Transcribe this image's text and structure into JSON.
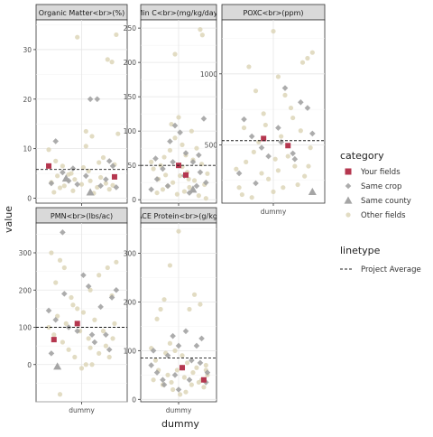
{
  "axes": {
    "xlabel": "dummy",
    "ylabel": "value"
  },
  "legend": {
    "category_title": "category",
    "categories": [
      {
        "label": "Your fields",
        "color": "#b5374f",
        "shape": "square"
      },
      {
        "label": "Same crop",
        "color": "#9e9e9e",
        "shape": "diamond"
      },
      {
        "label": "Same county",
        "color": "#a5a5a5",
        "shape": "triangle"
      },
      {
        "label": "Other fields",
        "color": "#ddd6b8",
        "shape": "circle"
      }
    ],
    "linetype_title": "linetype",
    "linetypes": [
      {
        "label": "Project Average",
        "style": "dashed"
      }
    ]
  },
  "chart_data": [
    {
      "type": "scatter",
      "title": "Organic Matter<br>(%)",
      "xlabel": "dummy",
      "ylabel": "value",
      "ylim": [
        -1,
        36
      ],
      "yticks": [
        0,
        10,
        20,
        30
      ],
      "x_tick": "dummy",
      "project_average": 5.8,
      "points": {
        "Other fields": [
          [
            -0.38,
            9.8
          ],
          [
            -0.3,
            7.5
          ],
          [
            -0.22,
            6.5
          ],
          [
            -0.15,
            4.8
          ],
          [
            -0.05,
            32.5
          ],
          [
            0.05,
            13.5
          ],
          [
            0.12,
            12.5
          ],
          [
            0.2,
            7.2
          ],
          [
            0.3,
            28
          ],
          [
            0.35,
            27.5
          ],
          [
            0.4,
            33
          ],
          [
            0.42,
            13
          ],
          [
            -0.35,
            3.2
          ],
          [
            -0.25,
            2.1
          ],
          [
            -0.1,
            1.5
          ],
          [
            0.0,
            2.8
          ],
          [
            0.1,
            3.5
          ],
          [
            0.22,
            4.2
          ],
          [
            0.32,
            1.8
          ],
          [
            -0.32,
            1.2
          ],
          [
            -0.2,
            2.5
          ],
          [
            -0.08,
            3.8
          ],
          [
            0.08,
            5.5
          ],
          [
            0.18,
            2.2
          ],
          [
            0.28,
            3.0
          ],
          [
            0.38,
            6.8
          ],
          [
            -0.12,
            5.0
          ],
          [
            0.02,
            6.2
          ],
          [
            0.14,
            1.0
          ],
          [
            0.25,
            8.2
          ],
          [
            0.36,
            2.6
          ],
          [
            -0.28,
            4.5
          ],
          [
            0.05,
            10.5
          ]
        ],
        "Same crop": [
          [
            -0.3,
            11.5
          ],
          [
            -0.22,
            5.2
          ],
          [
            -0.15,
            3.5
          ],
          [
            -0.05,
            2.8
          ],
          [
            0.05,
            4.5
          ],
          [
            0.1,
            20
          ],
          [
            0.18,
            20
          ],
          [
            0.28,
            3.8
          ],
          [
            0.36,
            6.5
          ],
          [
            0.4,
            2.2
          ],
          [
            -0.35,
            3.0
          ],
          [
            -0.1,
            6.0
          ],
          [
            0.22,
            2.5
          ],
          [
            0.32,
            7.5
          ]
        ],
        "Same county": [
          [
            0.1,
            1.2
          ],
          [
            -0.18,
            4.0
          ]
        ],
        "Your fields": [
          [
            -0.38,
            6.5
          ],
          [
            0.38,
            4.3
          ]
        ]
      }
    },
    {
      "type": "scatter",
      "title": "Min C<br>(mg/kg/day)",
      "xlabel": "dummy",
      "ylabel": "value",
      "ylim": [
        -5,
        262
      ],
      "yticks": [
        0,
        50,
        100,
        150,
        200,
        250
      ],
      "x_tick": "dummy",
      "project_average": 50,
      "points": {
        "Other fields": [
          [
            -0.35,
            45
          ],
          [
            -0.28,
            30
          ],
          [
            -0.2,
            62
          ],
          [
            -0.12,
            72
          ],
          [
            -0.05,
            90
          ],
          [
            0.0,
            120
          ],
          [
            0.05,
            80
          ],
          [
            0.12,
            40
          ],
          [
            0.2,
            58
          ],
          [
            0.3,
            248
          ],
          [
            0.33,
            240
          ],
          [
            -0.05,
            212
          ],
          [
            -0.3,
            10
          ],
          [
            -0.22,
            15
          ],
          [
            -0.15,
            20
          ],
          [
            -0.08,
            25
          ],
          [
            0.02,
            35
          ],
          [
            0.08,
            12
          ],
          [
            0.15,
            18
          ],
          [
            0.22,
            28
          ],
          [
            0.28,
            6
          ],
          [
            0.36,
            22
          ],
          [
            0.4,
            38
          ],
          [
            -0.38,
            55
          ],
          [
            0.1,
            65
          ],
          [
            0.25,
            75
          ],
          [
            -0.1,
            110
          ],
          [
            0.18,
            100
          ],
          [
            -0.25,
            50
          ],
          [
            0.05,
            48
          ],
          [
            0.32,
            52
          ],
          [
            -0.02,
            8
          ],
          [
            0.38,
            2
          ],
          [
            0.14,
            30
          ],
          [
            -0.18,
            36
          ]
        ],
        "Same crop": [
          [
            -0.32,
            60
          ],
          [
            -0.22,
            45
          ],
          [
            -0.12,
            85
          ],
          [
            -0.05,
            108
          ],
          [
            0.02,
            98
          ],
          [
            0.1,
            68
          ],
          [
            0.2,
            55
          ],
          [
            0.28,
            65
          ],
          [
            0.35,
            118
          ],
          [
            -0.3,
            30
          ],
          [
            -0.15,
            20
          ],
          [
            0.08,
            35
          ],
          [
            0.3,
            40
          ],
          [
            0.38,
            25
          ],
          [
            -0.38,
            15
          ],
          [
            0.15,
            10
          ],
          [
            -0.08,
            55
          ],
          [
            0.25,
            20
          ]
        ],
        "Same county": [
          [
            0.2,
            15
          ]
        ],
        "Your fields": [
          [
            0.0,
            50
          ],
          [
            0.1,
            36
          ]
        ]
      }
    },
    {
      "type": "scatter",
      "title": "POXC<br>(ppm)",
      "xlabel": "dummy",
      "ylabel": "value",
      "ylim": [
        90,
        1380
      ],
      "yticks": [
        500,
        1000
      ],
      "x_tick": "dummy",
      "project_average": 530,
      "points": {
        "Other fields": [
          [
            -0.38,
            330
          ],
          [
            -0.3,
            620
          ],
          [
            -0.25,
            1050
          ],
          [
            -0.18,
            880
          ],
          [
            -0.1,
            720
          ],
          [
            0.0,
            1300
          ],
          [
            0.05,
            980
          ],
          [
            0.12,
            850
          ],
          [
            0.2,
            690
          ],
          [
            0.3,
            1080
          ],
          [
            0.35,
            1110
          ],
          [
            0.4,
            1150
          ],
          [
            -0.35,
            200
          ],
          [
            -0.28,
            380
          ],
          [
            -0.2,
            450
          ],
          [
            -0.12,
            300
          ],
          [
            -0.05,
            260
          ],
          [
            0.02,
            400
          ],
          [
            0.08,
            560
          ],
          [
            0.15,
            420
          ],
          [
            0.22,
            350
          ],
          [
            0.28,
            600
          ],
          [
            0.38,
            480
          ],
          [
            -0.32,
            150
          ],
          [
            -0.22,
            130
          ],
          [
            0.1,
            200
          ],
          [
            0.25,
            220
          ],
          [
            0.32,
            280
          ],
          [
            -0.15,
            520
          ],
          [
            0.18,
            760
          ],
          [
            0.05,
            320
          ],
          [
            -0.08,
            640
          ],
          [
            0.36,
            350
          ],
          [
            0.0,
            170
          ]
        ],
        "Same crop": [
          [
            -0.3,
            680
          ],
          [
            -0.22,
            560
          ],
          [
            -0.12,
            480
          ],
          [
            -0.05,
            420
          ],
          [
            0.05,
            620
          ],
          [
            0.12,
            900
          ],
          [
            0.2,
            440
          ],
          [
            0.28,
            800
          ],
          [
            0.35,
            760
          ],
          [
            0.4,
            580
          ],
          [
            -0.35,
            300
          ],
          [
            -0.18,
            230
          ],
          [
            0.08,
            520
          ],
          [
            0.22,
            400
          ]
        ],
        "Same county": [
          [
            0.4,
            170
          ]
        ],
        "Your fields": [
          [
            -0.1,
            545
          ],
          [
            0.15,
            495
          ]
        ]
      }
    },
    {
      "type": "scatter",
      "title": "PMN<br>(lbs/ac)",
      "xlabel": "dummy",
      "ylabel": "value",
      "ylim": [
        -100,
        380
      ],
      "yticks": [
        0,
        100,
        200,
        300
      ],
      "x_tick": "dummy",
      "project_average": 100,
      "points": {
        "Other fields": [
          [
            -0.35,
            300
          ],
          [
            -0.3,
            220
          ],
          [
            -0.25,
            280
          ],
          [
            -0.2,
            260
          ],
          [
            -0.12,
            180
          ],
          [
            -0.05,
            150
          ],
          [
            0.02,
            140
          ],
          [
            0.1,
            200
          ],
          [
            0.2,
            240
          ],
          [
            0.3,
            260
          ],
          [
            0.4,
            275
          ],
          [
            0.35,
            185
          ],
          [
            -0.38,
            100
          ],
          [
            -0.32,
            80
          ],
          [
            -0.22,
            60
          ],
          [
            -0.15,
            40
          ],
          [
            -0.08,
            20
          ],
          [
            0.0,
            -10
          ],
          [
            0.05,
            0
          ],
          [
            0.12,
            0
          ],
          [
            0.2,
            30
          ],
          [
            0.28,
            50
          ],
          [
            0.36,
            70
          ],
          [
            -0.28,
            130
          ],
          [
            -0.18,
            110
          ],
          [
            -0.02,
            90
          ],
          [
            0.08,
            70
          ],
          [
            0.15,
            120
          ],
          [
            0.25,
            90
          ],
          [
            0.38,
            110
          ],
          [
            -0.25,
            -80
          ],
          [
            0.32,
            20
          ],
          [
            -0.1,
            160
          ],
          [
            0.1,
            45
          ]
        ],
        "Same crop": [
          [
            -0.38,
            145
          ],
          [
            -0.3,
            120
          ],
          [
            -0.22,
            355
          ],
          [
            -0.15,
            100
          ],
          [
            -0.05,
            90
          ],
          [
            0.02,
            240
          ],
          [
            0.08,
            210
          ],
          [
            0.15,
            60
          ],
          [
            0.22,
            155
          ],
          [
            0.28,
            80
          ],
          [
            0.35,
            180
          ],
          [
            0.4,
            200
          ],
          [
            -0.35,
            30
          ],
          [
            -0.2,
            190
          ],
          [
            0.12,
            80
          ],
          [
            0.32,
            40
          ]
        ],
        "Same county": [
          [
            -0.28,
            -5
          ]
        ],
        "Your fields": [
          [
            -0.32,
            67
          ],
          [
            -0.05,
            110
          ]
        ]
      }
    },
    {
      "type": "scatter",
      "title": "ACE Protein<br>(g/kg)",
      "xlabel": "dummy",
      "ylabel": "value",
      "ylim": [
        -5,
        362
      ],
      "yticks": [
        0,
        100,
        200,
        300
      ],
      "x_tick": "dummy",
      "project_average": 85,
      "points": {
        "Other fields": [
          [
            -0.38,
            105
          ],
          [
            -0.3,
            165
          ],
          [
            -0.25,
            185
          ],
          [
            -0.2,
            205
          ],
          [
            -0.12,
            115
          ],
          [
            -0.05,
            100
          ],
          [
            0.0,
            345
          ],
          [
            -0.12,
            275
          ],
          [
            0.15,
            185
          ],
          [
            0.22,
            215
          ],
          [
            0.3,
            195
          ],
          [
            0.38,
            70
          ],
          [
            -0.35,
            40
          ],
          [
            -0.28,
            60
          ],
          [
            -0.22,
            30
          ],
          [
            -0.15,
            50
          ],
          [
            -0.08,
            20
          ],
          [
            0.02,
            10
          ],
          [
            0.08,
            45
          ],
          [
            0.12,
            75
          ],
          [
            0.2,
            55
          ],
          [
            0.28,
            35
          ],
          [
            0.35,
            25
          ],
          [
            0.4,
            50
          ],
          [
            -0.32,
            80
          ],
          [
            -0.18,
            95
          ],
          [
            0.05,
            90
          ],
          [
            0.18,
            30
          ],
          [
            0.25,
            65
          ],
          [
            -0.02,
            60
          ],
          [
            0.1,
            15
          ],
          [
            0.32,
            40
          ],
          [
            -0.1,
            35
          ],
          [
            0.38,
            60
          ]
        ],
        "Same crop": [
          [
            -0.38,
            70
          ],
          [
            -0.3,
            55
          ],
          [
            -0.22,
            40
          ],
          [
            -0.15,
            90
          ],
          [
            -0.08,
            130
          ],
          [
            0.0,
            110
          ],
          [
            0.05,
            65
          ],
          [
            0.1,
            140
          ],
          [
            0.18,
            80
          ],
          [
            0.25,
            110
          ],
          [
            0.32,
            125
          ],
          [
            0.4,
            55
          ],
          [
            -0.35,
            100
          ],
          [
            -0.2,
            30
          ],
          [
            0.15,
            40
          ],
          [
            0.3,
            75
          ],
          [
            0.0,
            20
          ],
          [
            -0.05,
            50
          ],
          [
            0.38,
            35
          ]
        ],
        "Same county": [],
        "Your fields": [
          [
            0.05,
            65
          ],
          [
            0.35,
            40
          ]
        ]
      }
    }
  ]
}
